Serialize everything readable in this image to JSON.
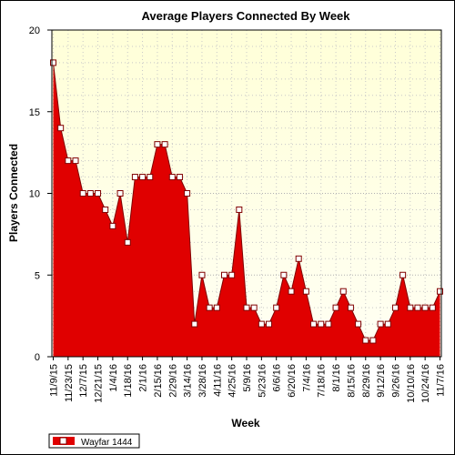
{
  "chart_data": {
    "type": "area",
    "title": "Average Players Connected By Week",
    "xlabel": "Week",
    "ylabel": "Players Connected",
    "ylim": [
      0,
      20
    ],
    "y_ticks": [
      0,
      5,
      10,
      15,
      20
    ],
    "grid": true,
    "legend_position": "bottom-left",
    "x_tick_labels": [
      "11/9/15",
      "11/23/15",
      "12/7/15",
      "12/21/15",
      "1/4/16",
      "1/18/16",
      "2/1/16",
      "2/15/16",
      "2/29/16",
      "3/14/16",
      "3/28/16",
      "4/11/16",
      "4/25/16",
      "5/9/16",
      "5/23/16",
      "6/6/16",
      "6/20/16",
      "7/4/16",
      "7/18/16",
      "8/1/16",
      "8/15/16",
      "8/29/16",
      "9/12/16",
      "9/26/16",
      "10/10/16",
      "10/24/16",
      "11/7/16"
    ],
    "series": [
      {
        "name": "Wayfar 1444",
        "color": "#e00000",
        "marker": "white-square",
        "values": [
          18,
          14,
          12,
          12,
          10,
          10,
          10,
          9,
          8,
          10,
          7,
          11,
          11,
          11,
          13,
          13,
          11,
          11,
          10,
          2,
          5,
          3,
          3,
          5,
          5,
          9,
          3,
          3,
          2,
          2,
          3,
          5,
          4,
          6,
          4,
          2,
          2,
          2,
          3,
          4,
          3,
          2,
          1,
          1,
          2,
          2,
          3,
          5,
          3,
          3,
          3,
          3,
          4
        ]
      }
    ],
    "colors": {
      "plot_background_top": "#ffffd8",
      "plot_background_bottom": "#fffff4",
      "area_fill": "#e00000"
    }
  }
}
